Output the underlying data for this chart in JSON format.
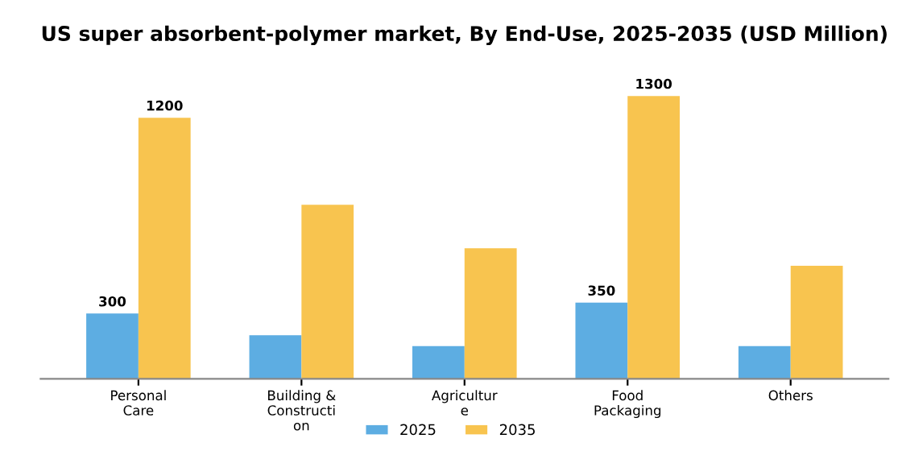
{
  "chart_data": {
    "type": "bar",
    "title": "US super absorbent-polymer market, By End-Use, 2025-2035 (USD Million)",
    "categories": [
      "Personal\nCare",
      "Building &\nConstructi\non",
      "Agricultur\ne",
      "Food\nPackaging",
      "Others"
    ],
    "series": [
      {
        "name": "2025",
        "color": "#5dade2",
        "values": [
          300,
          200,
          150,
          350,
          150
        ],
        "value_labels": [
          "300",
          null,
          null,
          "350",
          null
        ]
      },
      {
        "name": "2035",
        "color": "#f8c44f",
        "values": [
          1200,
          800,
          600,
          1300,
          520
        ],
        "value_labels": [
          "1200",
          null,
          null,
          "1300",
          null
        ]
      }
    ],
    "legend": "bottom",
    "grid": false
  }
}
